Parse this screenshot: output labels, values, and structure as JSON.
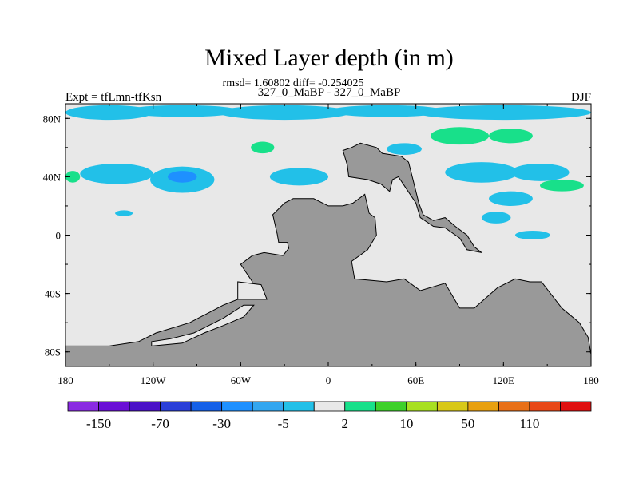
{
  "chart_data": {
    "type": "heatmap",
    "title": "Mixed Layer depth (in m)",
    "stats_text": "rmsd= 1.60802 diff= -0.254025",
    "left_label": "Expt = tfLmn-tfKsn",
    "center_label": "327_0_MaBP - 327_0_MaBP",
    "right_label": "DJF",
    "x_ticks": [
      {
        "value": -180,
        "label": "180"
      },
      {
        "value": -120,
        "label": "120W"
      },
      {
        "value": -60,
        "label": "60W"
      },
      {
        "value": 0,
        "label": "0"
      },
      {
        "value": 60,
        "label": "60E"
      },
      {
        "value": 120,
        "label": "120E"
      },
      {
        "value": 180,
        "label": "180"
      }
    ],
    "y_ticks": [
      {
        "value": 80,
        "label": "80N"
      },
      {
        "value": 40,
        "label": "40N"
      },
      {
        "value": 0,
        "label": "0"
      },
      {
        "value": -40,
        "label": "40S"
      },
      {
        "value": -80,
        "label": "80S"
      }
    ],
    "xlim": [
      -180,
      180
    ],
    "ylim": [
      -90,
      90
    ],
    "land_color": "#999999",
    "ocean_background_color": "#e8e8e8",
    "colorbar": {
      "colors": [
        "#8a2be2",
        "#6a0fd6",
        "#4b12c8",
        "#2a3fd8",
        "#1560e8",
        "#1e90ff",
        "#33a6f0",
        "#22c0e8",
        "#e8e8e8",
        "#18e08a",
        "#3ed02a",
        "#a8e020",
        "#d8c818",
        "#e8a010",
        "#e87018",
        "#e84818",
        "#e01010"
      ],
      "labels": [
        "-150",
        "-70",
        "-30",
        "-5",
        "2",
        "10",
        "50",
        "110"
      ]
    },
    "blobs": [
      {
        "cat": "minus5",
        "color": "#22c0e8",
        "lon": -150,
        "lat": 84,
        "rx": 30,
        "ry": 5
      },
      {
        "cat": "minus5",
        "color": "#22c0e8",
        "lon": -100,
        "lat": 85,
        "rx": 40,
        "ry": 4
      },
      {
        "cat": "minus5",
        "color": "#22c0e8",
        "lon": -30,
        "lat": 84,
        "rx": 45,
        "ry": 5
      },
      {
        "cat": "minus5",
        "color": "#22c0e8",
        "lon": 40,
        "lat": 85,
        "rx": 40,
        "ry": 4
      },
      {
        "cat": "minus5",
        "color": "#22c0e8",
        "lon": 120,
        "lat": 84,
        "rx": 60,
        "ry": 5
      },
      {
        "cat": "minus5",
        "color": "#22c0e8",
        "lon": -145,
        "lat": 42,
        "rx": 25,
        "ry": 7
      },
      {
        "cat": "minus5",
        "color": "#22c0e8",
        "lon": -100,
        "lat": 38,
        "rx": 22,
        "ry": 9
      },
      {
        "cat": "minus5",
        "color": "#22c0e8",
        "lon": -20,
        "lat": 40,
        "rx": 20,
        "ry": 6
      },
      {
        "cat": "minus5",
        "color": "#22c0e8",
        "lon": 105,
        "lat": 43,
        "rx": 25,
        "ry": 7
      },
      {
        "cat": "minus5",
        "color": "#22c0e8",
        "lon": 145,
        "lat": 43,
        "rx": 20,
        "ry": 6
      },
      {
        "cat": "minus5",
        "color": "#22c0e8",
        "lon": 125,
        "lat": 25,
        "rx": 15,
        "ry": 5
      },
      {
        "cat": "minus5",
        "color": "#22c0e8",
        "lon": 115,
        "lat": 12,
        "rx": 10,
        "ry": 4
      },
      {
        "cat": "minus5",
        "color": "#22c0e8",
        "lon": 140,
        "lat": 0,
        "rx": 12,
        "ry": 3
      },
      {
        "cat": "minus5",
        "color": "#22c0e8",
        "lon": 52,
        "lat": 59,
        "rx": 12,
        "ry": 4
      },
      {
        "cat": "minus5",
        "color": "#22c0e8",
        "lon": -140,
        "lat": 15,
        "rx": 6,
        "ry": 2
      },
      {
        "cat": "minus30",
        "color": "#1e90ff",
        "lon": -100,
        "lat": 40,
        "rx": 10,
        "ry": 4
      },
      {
        "cat": "plus2",
        "color": "#18e08a",
        "lon": -45,
        "lat": 60,
        "rx": 8,
        "ry": 4
      },
      {
        "cat": "plus2",
        "color": "#18e08a",
        "lon": 90,
        "lat": 68,
        "rx": 20,
        "ry": 6
      },
      {
        "cat": "plus2",
        "color": "#18e08a",
        "lon": 125,
        "lat": 68,
        "rx": 15,
        "ry": 5
      },
      {
        "cat": "plus2",
        "color": "#18e08a",
        "lon": -175,
        "lat": 40,
        "rx": 5,
        "ry": 4
      },
      {
        "cat": "plus2",
        "color": "#18e08a",
        "lon": 160,
        "lat": 34,
        "rx": 15,
        "ry": 4
      }
    ],
    "land": [
      [
        [
          -44,
          -12
        ],
        [
          -31,
          -14
        ],
        [
          -27,
          -9
        ],
        [
          -28,
          -5
        ],
        [
          -34,
          -5
        ],
        [
          -35,
          1
        ],
        [
          -38,
          14
        ],
        [
          -30,
          22
        ],
        [
          -24,
          25
        ],
        [
          -10,
          25
        ],
        [
          0,
          20
        ],
        [
          10,
          20
        ],
        [
          17,
          22
        ],
        [
          25,
          28
        ],
        [
          28,
          15
        ],
        [
          32,
          12
        ],
        [
          33,
          0
        ],
        [
          27,
          -10
        ],
        [
          16,
          -18
        ],
        [
          18,
          -30
        ],
        [
          40,
          -32
        ],
        [
          52,
          -30
        ],
        [
          63,
          -38
        ],
        [
          80,
          -33
        ],
        [
          90,
          -50
        ],
        [
          100,
          -50
        ],
        [
          116,
          -36
        ],
        [
          128,
          -30
        ],
        [
          138,
          -32
        ],
        [
          146,
          -32
        ],
        [
          160,
          -50
        ],
        [
          172,
          -60
        ],
        [
          178,
          -70
        ],
        [
          180,
          -82
        ],
        [
          180,
          -90
        ],
        [
          -180,
          -90
        ],
        [
          -180,
          -76
        ],
        [
          -150,
          -76
        ],
        [
          -130,
          -73
        ],
        [
          -118,
          -67
        ],
        [
          -95,
          -60
        ],
        [
          -72,
          -48
        ],
        [
          -57,
          -42
        ],
        [
          -52,
          -32
        ],
        [
          -60,
          -20
        ],
        [
          -52,
          -14
        ]
      ],
      [
        [
          10,
          58
        ],
        [
          16,
          60
        ],
        [
          22,
          63
        ],
        [
          33,
          60
        ],
        [
          37,
          56
        ],
        [
          50,
          54
        ],
        [
          55,
          50
        ],
        [
          58,
          38
        ],
        [
          60,
          30
        ],
        [
          62,
          22
        ],
        [
          65,
          14
        ],
        [
          72,
          10
        ],
        [
          80,
          12
        ],
        [
          87,
          6
        ],
        [
          95,
          0
        ],
        [
          100,
          -8
        ],
        [
          105,
          -12
        ],
        [
          95,
          -10
        ],
        [
          90,
          -2
        ],
        [
          80,
          5
        ],
        [
          72,
          6
        ],
        [
          63,
          12
        ],
        [
          60,
          22
        ],
        [
          48,
          40
        ],
        [
          44,
          38
        ],
        [
          42,
          30
        ],
        [
          36,
          35
        ],
        [
          27,
          38
        ],
        [
          14,
          40
        ],
        [
          13,
          48
        ]
      ]
    ],
    "inner_ocean": [
      [
        [
          -121,
          -76
        ],
        [
          -100,
          -74
        ],
        [
          -85,
          -67
        ],
        [
          -72,
          -62
        ],
        [
          -58,
          -56
        ],
        [
          -51,
          -48
        ],
        [
          -58,
          -48
        ],
        [
          -72,
          -57
        ],
        [
          -92,
          -67
        ],
        [
          -108,
          -71
        ],
        [
          -121,
          -73
        ]
      ],
      [
        [
          -62,
          -44
        ],
        [
          -42,
          -44
        ],
        [
          -46,
          -34
        ],
        [
          -62,
          -32
        ]
      ]
    ]
  }
}
